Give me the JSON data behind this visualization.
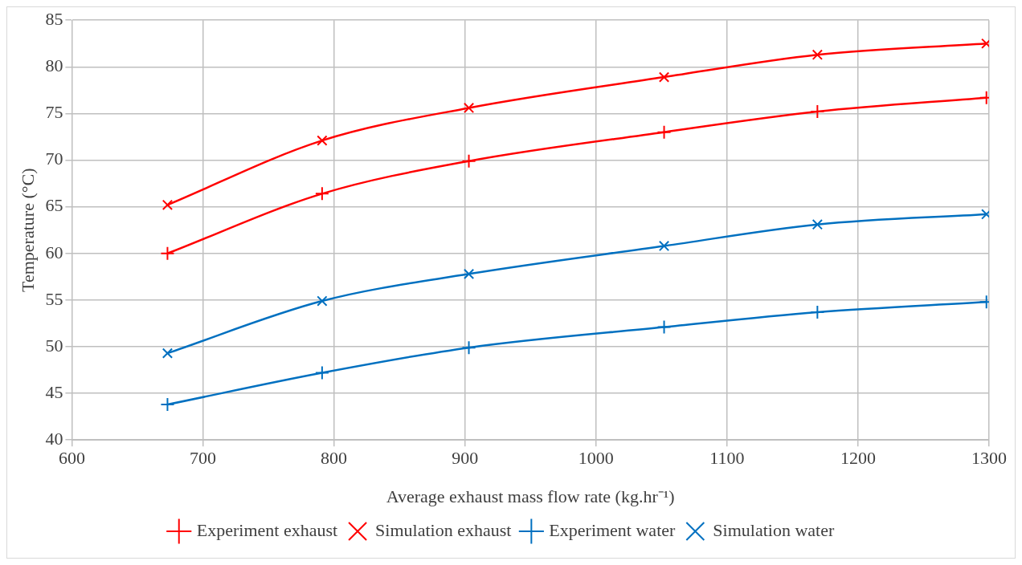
{
  "chart_data": {
    "type": "line",
    "xlabel": "Average exhaust mass flow rate (kg.hr⁻¹)",
    "ylabel": "Temperature (°C)",
    "x": [
      673,
      791,
      903,
      1052,
      1169,
      1298
    ],
    "xlim": [
      600,
      1300
    ],
    "xticks": [
      600,
      700,
      800,
      900,
      1000,
      1100,
      1200,
      1300
    ],
    "ylim": [
      40,
      85
    ],
    "yticks": [
      40,
      45,
      50,
      55,
      60,
      65,
      70,
      75,
      80,
      85
    ],
    "grid": true,
    "legend": "bottom",
    "line_style": "solid",
    "series": [
      {
        "name": "Experiment exhaust",
        "color": "#ff0000",
        "marker": "cross",
        "values": [
          60.0,
          66.4,
          69.9,
          73.0,
          75.2,
          76.7
        ]
      },
      {
        "name": "Simulation exhaust",
        "color": "#ff0000",
        "marker": "x",
        "values": [
          65.2,
          72.1,
          75.6,
          78.9,
          81.3,
          82.5
        ]
      },
      {
        "name": "Experiment water",
        "color": "#0070c0",
        "marker": "cross",
        "values": [
          43.8,
          47.2,
          49.9,
          52.1,
          53.7,
          54.8
        ]
      },
      {
        "name": "Simulation water",
        "color": "#0070c0",
        "marker": "x",
        "values": [
          49.3,
          54.9,
          57.8,
          60.8,
          63.1,
          64.2
        ]
      }
    ]
  }
}
